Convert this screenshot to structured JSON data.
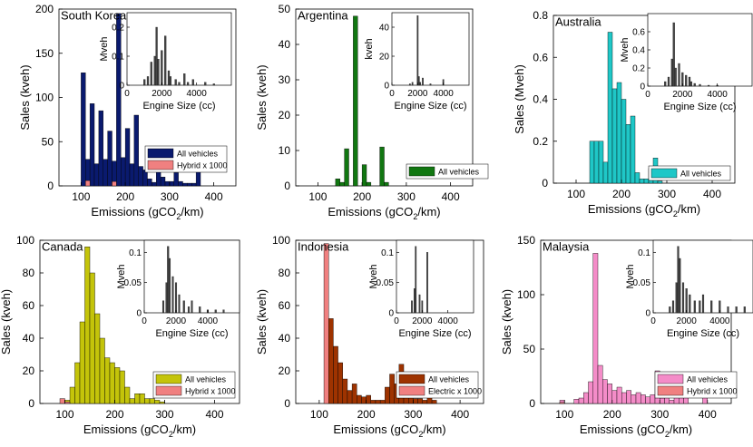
{
  "chart_data": [
    {
      "type": "bar",
      "title": "South Korea",
      "xlabel": "Emissions (gCO2/km)",
      "ylabel": "Sales (kveh)",
      "xlim": [
        50,
        450
      ],
      "ylim": [
        0,
        200
      ],
      "xticks": [
        100,
        200,
        300,
        400
      ],
      "yticks": [
        0,
        50,
        100,
        150,
        200
      ],
      "bin_width": 10,
      "main_color": "#0a1a6e",
      "sub_color": "#f08080",
      "series": [
        {
          "name": "All vehicles",
          "x": [
            105,
            115,
            125,
            135,
            145,
            155,
            165,
            175,
            185,
            195,
            205,
            215,
            225,
            235,
            245,
            255,
            265,
            275,
            285,
            295,
            305,
            315,
            325,
            335,
            345,
            355,
            365
          ],
          "values": [
            128,
            30,
            93,
            25,
            85,
            30,
            62,
            28,
            195,
            32,
            65,
            25,
            80,
            22,
            18,
            8,
            4,
            22,
            10,
            5,
            5,
            15,
            5,
            3,
            3,
            3,
            30
          ]
        },
        {
          "name": "Hybrid x 1000",
          "x": [
            115,
            175
          ],
          "values": [
            6,
            5
          ]
        }
      ],
      "legend": [
        "All vehicles",
        "Hybrid x 1000"
      ],
      "legend_position": "bottom-right",
      "inset": {
        "xlabel": "Engine Size (cc)",
        "ylabel": "Mveh",
        "xlim": [
          0,
          6000
        ],
        "ylim": [
          0,
          0.25
        ],
        "xticks": [
          0,
          2000,
          4000
        ],
        "yticks": [
          0,
          0.1,
          0.2
        ],
        "x": [
          1000,
          1200,
          1400,
          1600,
          1700,
          1800,
          2000,
          2200,
          2400,
          2500,
          2800,
          3000,
          3300,
          3500,
          3800,
          4500,
          5000
        ],
        "values": [
          0.02,
          0.03,
          0.08,
          0.1,
          0.2,
          0.09,
          0.12,
          0.17,
          0.05,
          0.03,
          0.02,
          0.01,
          0.04,
          0.01,
          0.02,
          0.01,
          0.005
        ]
      }
    },
    {
      "type": "bar",
      "title": "Argentina",
      "xlabel": "Emissions (gCO2/km)",
      "ylabel": "Sales (kveh)",
      "xlim": [
        50,
        450
      ],
      "ylim": [
        0,
        50
      ],
      "xticks": [
        100,
        200,
        300,
        400
      ],
      "yticks": [
        0,
        10,
        20,
        30,
        40,
        50
      ],
      "bin_width": 10,
      "main_color": "#117711",
      "series": [
        {
          "name": "All vehicles",
          "x": [
            145,
            155,
            165,
            175,
            185,
            195,
            205,
            215,
            225,
            235,
            245,
            255
          ],
          "values": [
            2,
            1,
            10.5,
            0,
            48,
            0,
            6,
            1,
            0,
            0,
            11,
            1
          ]
        }
      ],
      "legend": [
        "All vehicles"
      ],
      "legend_position": "bottom-right",
      "inset": {
        "xlabel": "Engine Size (cc)",
        "ylabel": "kveh",
        "xlim": [
          0,
          6000
        ],
        "ylim": [
          0,
          50
        ],
        "xticks": [
          0,
          2000,
          4000
        ],
        "yticks": [
          0,
          20,
          40
        ],
        "x": [
          1400,
          1600,
          2000,
          2100,
          2200,
          2400,
          3000,
          4000
        ],
        "values": [
          1,
          2,
          48,
          6,
          2,
          5,
          1,
          4
        ]
      }
    },
    {
      "type": "bar",
      "title": "Australia",
      "xlabel": "Emissions (gCO2/km)",
      "ylabel": "Sales (Mveh)",
      "xlim": [
        50,
        450
      ],
      "ylim": [
        0,
        0.8
      ],
      "xticks": [
        100,
        200,
        300,
        400
      ],
      "yticks": [
        0,
        0.2,
        0.4,
        0.6,
        0.8
      ],
      "bin_width": 10,
      "main_color": "#1fc7c7",
      "series": [
        {
          "name": "All vehicles",
          "x": [
            135,
            145,
            155,
            165,
            175,
            185,
            195,
            205,
            215,
            225,
            235,
            245,
            255,
            265,
            275,
            285
          ],
          "values": [
            0.2,
            0.2,
            0.2,
            0.1,
            0.72,
            0.45,
            0.48,
            0.4,
            0.28,
            0.32,
            0.05,
            0.02,
            0.02,
            0.07,
            0.12,
            0.01
          ]
        }
      ],
      "legend": [
        "All vehicles"
      ],
      "legend_position": "bottom-right",
      "inset": {
        "xlabel": "Engine Size (cc)",
        "ylabel": "Mveh",
        "xlim": [
          0,
          6000
        ],
        "ylim": [
          0,
          0.8
        ],
        "xticks": [
          0,
          2000,
          4000
        ],
        "yticks": [
          0,
          0.2,
          0.4,
          0.6
        ],
        "x": [
          1000,
          1200,
          1400,
          1500,
          1600,
          1800,
          2000,
          2200,
          2400,
          2500,
          2700,
          3000,
          3500,
          4000
        ],
        "values": [
          0.05,
          0.1,
          0.3,
          0.7,
          0.2,
          0.25,
          0.15,
          0.12,
          0.1,
          0.05,
          0.03,
          0.02,
          0.01,
          0.01
        ]
      }
    },
    {
      "type": "bar",
      "title": "Canada",
      "xlabel": "Emissions (gCO2/km)",
      "ylabel": "Sales (kveh)",
      "xlim": [
        50,
        450
      ],
      "ylim": [
        0,
        100
      ],
      "xticks": [
        100,
        200,
        300,
        400
      ],
      "yticks": [
        0,
        20,
        40,
        60,
        80,
        100
      ],
      "bin_width": 10,
      "main_color": "#c4c40a",
      "sub_color": "#f08080",
      "series": [
        {
          "name": "All vehicles",
          "x": [
            105,
            115,
            125,
            135,
            145,
            155,
            165,
            175,
            185,
            195,
            205,
            215,
            225,
            235,
            245,
            255,
            265,
            275,
            285,
            295
          ],
          "values": [
            2,
            10,
            25,
            50,
            96,
            80,
            55,
            40,
            28,
            25,
            22,
            20,
            10,
            3,
            6,
            6,
            3,
            3,
            2,
            1
          ]
        },
        {
          "name": "Hybrid x 1000",
          "x": [
            95,
            105
          ],
          "values": [
            3,
            1
          ]
        }
      ],
      "legend": [
        "All vehicles",
        "Hybrid x 1000"
      ],
      "legend_position": "bottom-right",
      "inset": {
        "xlabel": "Engine Size (cc)",
        "ylabel": "Mveh",
        "xlim": [
          0,
          6000
        ],
        "ylim": [
          0,
          0.12
        ],
        "xticks": [
          0,
          2000,
          4000
        ],
        "yticks": [
          0,
          0.05,
          0.1
        ],
        "x": [
          1200,
          1400,
          1500,
          1600,
          1800,
          2000,
          2200,
          2500,
          2800,
          3000,
          3500,
          4000,
          4500,
          5000
        ],
        "values": [
          0.02,
          0.05,
          0.11,
          0.09,
          0.06,
          0.05,
          0.03,
          0.02,
          0.01,
          0.02,
          0.01,
          0.005,
          0.005,
          0.005
        ]
      }
    },
    {
      "type": "bar",
      "title": "Indonesia",
      "xlabel": "Emissions (gCO2/km)",
      "ylabel": "Sales (kveh)",
      "xlim": [
        50,
        450
      ],
      "ylim": [
        0,
        100
      ],
      "xticks": [
        100,
        200,
        300,
        400
      ],
      "yticks": [
        0,
        20,
        40,
        60,
        80,
        100
      ],
      "bin_width": 10,
      "main_color": "#9e3300",
      "sub_color": "#f08080",
      "series": [
        {
          "name": "All vehicles",
          "x": [
            115,
            125,
            135,
            145,
            155,
            165,
            175,
            185,
            195,
            205,
            215,
            225,
            235,
            245,
            255,
            265,
            275,
            285,
            295,
            305,
            315,
            325,
            335,
            345
          ],
          "values": [
            0,
            52,
            35,
            25,
            15,
            8,
            12,
            5,
            4,
            5,
            2,
            2,
            2,
            10,
            18,
            12,
            24,
            10,
            5,
            3,
            3,
            2,
            8,
            2
          ]
        },
        {
          "name": "Electric x 1000",
          "x": [
            115
          ],
          "values": [
            98
          ]
        }
      ],
      "legend": [
        "All vehicles",
        "Electric x 1000"
      ],
      "legend_position": "bottom-right",
      "inset": {
        "xlabel": "Engine Size (cc)",
        "ylabel": "Mveh",
        "xlim": [
          0,
          6000
        ],
        "ylim": [
          0,
          0.12
        ],
        "xticks": [
          0,
          2000,
          4000
        ],
        "yticks": [
          0,
          0.05,
          0.1
        ],
        "x": [
          1200,
          1400,
          1500,
          1800,
          2000,
          2400
        ],
        "values": [
          0.02,
          0.04,
          0.11,
          0.03,
          0.02,
          0.1
        ]
      }
    },
    {
      "type": "bar",
      "title": "Malaysia",
      "xlabel": "Emissions (gCO2/km)",
      "ylabel": "Sales (kveh)",
      "xlim": [
        50,
        450
      ],
      "ylim": [
        0,
        150
      ],
      "xticks": [
        100,
        200,
        300,
        400
      ],
      "yticks": [
        0,
        50,
        100,
        150
      ],
      "bin_width": 10,
      "main_color": "#f48cc8",
      "sub_color": "#f08080",
      "series": [
        {
          "name": "All vehicles",
          "x": [
            95,
            105,
            115,
            125,
            135,
            145,
            155,
            165,
            175,
            185,
            195,
            205,
            215,
            225,
            235,
            245,
            255,
            265,
            275,
            285,
            295,
            305,
            315,
            325,
            335,
            345,
            355,
            365,
            375,
            385,
            395
          ],
          "values": [
            3,
            0,
            0,
            4,
            5,
            10,
            20,
            138,
            35,
            22,
            18,
            12,
            15,
            10,
            12,
            8,
            10,
            8,
            6,
            8,
            30,
            5,
            8,
            3,
            8,
            7,
            6,
            0,
            0,
            0,
            6
          ]
        },
        {
          "name": "Hybrid x 1000",
          "x": [
            95
          ],
          "values": [
            1
          ]
        }
      ],
      "legend": [
        "All vehicles",
        "Hybrid x 1000"
      ],
      "legend_position": "bottom-right",
      "inset": {
        "xlabel": "Engine Size (cc)",
        "ylabel": "Mveh",
        "xlim": [
          0,
          6000
        ],
        "ylim": [
          0,
          0.12
        ],
        "xticks": [
          0,
          2000,
          4000
        ],
        "yticks": [
          0,
          0.05,
          0.1
        ],
        "x": [
          1000,
          1200,
          1400,
          1500,
          1600,
          1800,
          2000,
          2200,
          2500,
          2800,
          3000,
          3500,
          4000,
          4500,
          5000,
          5500
        ],
        "values": [
          0.01,
          0.02,
          0.05,
          0.11,
          0.09,
          0.05,
          0.04,
          0.03,
          0.02,
          0.02,
          0.03,
          0.02,
          0.02,
          0.01,
          0.01,
          0.01
        ]
      }
    }
  ]
}
